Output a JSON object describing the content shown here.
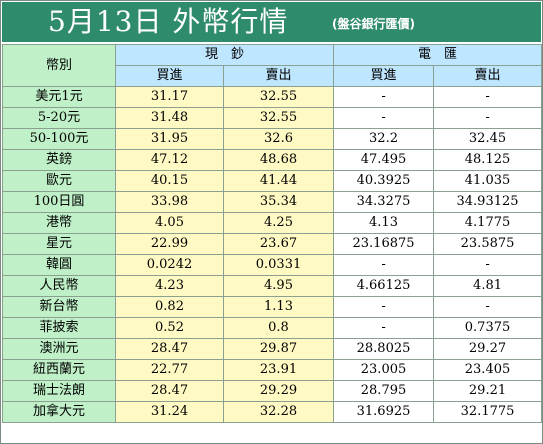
{
  "title": {
    "main": "5月13日 外幣行情",
    "source": "(盤谷銀行匯價)"
  },
  "header": {
    "currency_label": "幣別",
    "cash_label": "現　鈔",
    "wire_label": "電　匯",
    "buy_label": "買進",
    "sell_label": "賣出"
  },
  "rows": [
    {
      "currency": "美元1元",
      "cash_buy": "31.17",
      "cash_sell": "32.55",
      "wire_buy": "-",
      "wire_sell": "-"
    },
    {
      "currency": "5-20元",
      "cash_buy": "31.48",
      "cash_sell": "32.55",
      "wire_buy": "-",
      "wire_sell": "-"
    },
    {
      "currency": "50-100元",
      "cash_buy": "31.95",
      "cash_sell": "32.6",
      "wire_buy": "32.2",
      "wire_sell": "32.45"
    },
    {
      "currency": "英鎊",
      "cash_buy": "47.12",
      "cash_sell": "48.68",
      "wire_buy": "47.495",
      "wire_sell": "48.125"
    },
    {
      "currency": "歐元",
      "cash_buy": "40.15",
      "cash_sell": "41.44",
      "wire_buy": "40.3925",
      "wire_sell": "41.035"
    },
    {
      "currency": "100日圓",
      "cash_buy": "33.98",
      "cash_sell": "35.34",
      "wire_buy": "34.3275",
      "wire_sell": "34.93125"
    },
    {
      "currency": "港幣",
      "cash_buy": "4.05",
      "cash_sell": "4.25",
      "wire_buy": "4.13",
      "wire_sell": "4.1775"
    },
    {
      "currency": "星元",
      "cash_buy": "22.99",
      "cash_sell": "23.67",
      "wire_buy": "23.16875",
      "wire_sell": "23.5875"
    },
    {
      "currency": "韓圓",
      "cash_buy": "0.0242",
      "cash_sell": "0.0331",
      "wire_buy": "-",
      "wire_sell": "-"
    },
    {
      "currency": "人民幣",
      "cash_buy": "4.23",
      "cash_sell": "4.95",
      "wire_buy": "4.66125",
      "wire_sell": "4.81"
    },
    {
      "currency": "新台幣",
      "cash_buy": "0.82",
      "cash_sell": "1.13",
      "wire_buy": "-",
      "wire_sell": "-"
    },
    {
      "currency": "菲披索",
      "cash_buy": "0.52",
      "cash_sell": "0.8",
      "wire_buy": "-",
      "wire_sell": "0.7375"
    },
    {
      "currency": "澳洲元",
      "cash_buy": "28.47",
      "cash_sell": "29.87",
      "wire_buy": "28.8025",
      "wire_sell": "29.27"
    },
    {
      "currency": "紐西蘭元",
      "cash_buy": "22.77",
      "cash_sell": "23.91",
      "wire_buy": "23.005",
      "wire_sell": "23.405"
    },
    {
      "currency": "瑞士法朗",
      "cash_buy": "28.47",
      "cash_sell": "29.29",
      "wire_buy": "28.795",
      "wire_sell": "29.21"
    },
    {
      "currency": "加拿大元",
      "cash_buy": "31.24",
      "cash_sell": "32.28",
      "wire_buy": "31.6925",
      "wire_sell": "32.1775"
    }
  ]
}
